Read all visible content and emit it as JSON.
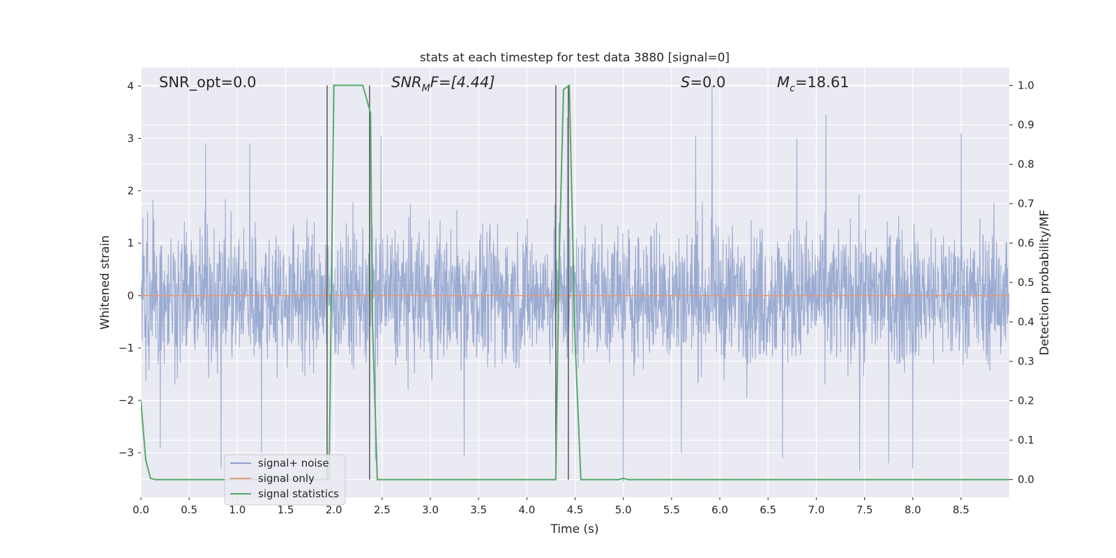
{
  "chart_data": {
    "type": "line",
    "title": "stats at each timestep for test data 3880 [signal=0]",
    "xlabel": "Time (s)",
    "ylabel": "Whitened strain",
    "y2label": "Detection probability/MF",
    "xlim": [
      0.0,
      9.0
    ],
    "ylim": [
      -3.85,
      4.35
    ],
    "y2lim": [
      -0.045,
      1.045
    ],
    "xticks": [
      0.0,
      0.5,
      1.0,
      1.5,
      2.0,
      2.5,
      3.0,
      3.5,
      4.0,
      4.5,
      5.0,
      5.5,
      6.0,
      6.5,
      7.0,
      7.5,
      8.0,
      8.5
    ],
    "xtick_labels": [
      "0.0",
      "0.5",
      "1.0",
      "1.5",
      "2.0",
      "2.5",
      "3.0",
      "3.5",
      "4.0",
      "4.5",
      "5.0",
      "5.5",
      "6.0",
      "6.5",
      "7.0",
      "7.5",
      "8.0",
      "8.5"
    ],
    "yticks": [
      -3,
      -2,
      -1,
      0,
      1,
      2,
      3,
      4
    ],
    "ytick_labels": [
      "−3",
      "−2",
      "−1",
      "0",
      "1",
      "2",
      "3",
      "4"
    ],
    "y2ticks": [
      0.0,
      0.1,
      0.2,
      0.3,
      0.4,
      0.5,
      0.6,
      0.7,
      0.8,
      0.9,
      1.0
    ],
    "y2tick_labels": [
      "0.0",
      "0.1",
      "0.2",
      "0.3",
      "0.4",
      "0.5",
      "0.6",
      "0.7",
      "0.8",
      "0.9",
      "1.0"
    ],
    "grid": true,
    "legend_position": "lower-left",
    "series": [
      {
        "name": "signal+ noise",
        "axis": "left",
        "color": "#8da0cb",
        "kind": "noise",
        "x_range": [
          0.0,
          9.0
        ],
        "typical_envelope": [
          -1.9,
          2.0
        ],
        "peaks_max": [
          [
            0.67,
            2.9
          ],
          [
            1.13,
            2.9
          ],
          [
            2.37,
            3.1
          ],
          [
            2.49,
            3.05
          ],
          [
            4.42,
            3.4
          ],
          [
            5.75,
            3.05
          ],
          [
            5.92,
            4.0
          ],
          [
            6.8,
            3.0
          ],
          [
            7.1,
            3.45
          ],
          [
            7.75,
            3.2
          ],
          [
            8.5,
            3.1
          ]
        ],
        "peaks_min": [
          [
            0.2,
            -2.9
          ],
          [
            0.83,
            -3.3
          ],
          [
            1.25,
            -3.0
          ],
          [
            2.43,
            -3.15
          ],
          [
            3.35,
            -3.05
          ],
          [
            5.0,
            -3.55
          ],
          [
            5.6,
            -3.0
          ],
          [
            6.65,
            -3.1
          ],
          [
            7.45,
            -3.35
          ],
          [
            7.75,
            -3.2
          ],
          [
            8.0,
            -3.3
          ]
        ]
      },
      {
        "name": "signal only",
        "axis": "left",
        "color": "#e39a7b",
        "x": [
          0.0,
          9.0
        ],
        "y": [
          0.0,
          0.0
        ]
      },
      {
        "name": "signal statistics",
        "axis": "right",
        "color": "#55a868",
        "x": [
          0.0,
          0.05,
          0.1,
          0.15,
          1.9,
          1.95,
          2.0,
          2.3,
          2.38,
          2.4,
          2.45,
          4.3,
          4.33,
          4.38,
          4.44,
          4.5,
          4.56,
          4.95,
          5.0,
          5.05,
          9.0
        ],
        "y": [
          0.2,
          0.05,
          0.003,
          0.0,
          0.0,
          0.0,
          1.0,
          1.0,
          0.93,
          0.4,
          0.0,
          0.0,
          0.5,
          0.99,
          1.0,
          0.35,
          0.0,
          0.0,
          0.003,
          0.0,
          0.0
        ]
      }
    ],
    "vlines": [
      1.93,
      2.37,
      4.3,
      4.43
    ],
    "vline_color": "#555555",
    "annotations": {
      "snr_opt": "SNR_opt=0.0",
      "snr_mf_main": "SNR",
      "snr_mf_sub": "M",
      "snr_mf_rest": "F=[4.44]",
      "s_sym": "S",
      "s_val": "=0.0",
      "mc_main": "M",
      "mc_sub": "c",
      "mc_val": "=18.61"
    }
  }
}
